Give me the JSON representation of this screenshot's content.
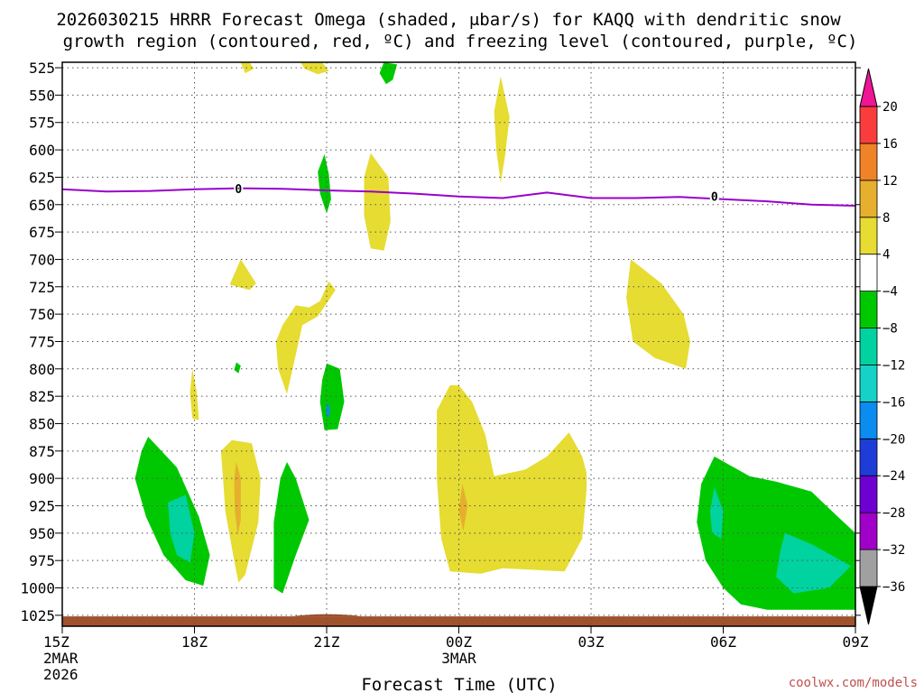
{
  "chart_data": {
    "type": "heatmap",
    "title_line1": "2026030215 HRRR Forecast Omega (shaded, μbar/s) for KAQQ with dendritic snow",
    "title_line2": "growth region (contoured, red, ºC) and freezing level (contoured, purple, ºC)",
    "xlabel": "Forecast Time (UTC)",
    "ylabel": "",
    "credit": "coolwx.com/models",
    "x_range_hours": [
      0,
      18
    ],
    "y_range_mb": [
      1035,
      520
    ],
    "x_ticks": [
      {
        "hour": 0,
        "label": "15Z",
        "sub1": "2MAR",
        "sub2": "2026"
      },
      {
        "hour": 3,
        "label": "18Z",
        "sub1": "",
        "sub2": ""
      },
      {
        "hour": 6,
        "label": "21Z",
        "sub1": "",
        "sub2": ""
      },
      {
        "hour": 9,
        "label": "00Z",
        "sub1": "3MAR",
        "sub2": ""
      },
      {
        "hour": 12,
        "label": "03Z",
        "sub1": "",
        "sub2": ""
      },
      {
        "hour": 15,
        "label": "06Z",
        "sub1": "",
        "sub2": ""
      },
      {
        "hour": 18,
        "label": "09Z",
        "sub1": "",
        "sub2": ""
      }
    ],
    "y_ticks": [
      "525",
      "550",
      "575",
      "600",
      "625",
      "650",
      "675",
      "700",
      "725",
      "750",
      "775",
      "800",
      "825",
      "850",
      "875",
      "900",
      "925",
      "950",
      "975",
      "1000",
      "1025"
    ],
    "colorbar": {
      "colors": [
        "#000000",
        "#a0a0a0",
        "#a000c8",
        "#6e00d2",
        "#1e3cd7",
        "#0a8cf0",
        "#14d2c8",
        "#00d2a0",
        "#00c800",
        "#ffffff",
        "#e6dc32",
        "#e6af2d",
        "#f08228",
        "#fa3c3c",
        "#f01496"
      ],
      "labels": [
        "20",
        "16",
        "12",
        "8",
        "4",
        "−4",
        "−8",
        "−12",
        "−16",
        "−20",
        "−24",
        "−28",
        "−32",
        "−36"
      ]
    },
    "freezing_level": {
      "name": "0 °C freezing level",
      "color": "#9900cc",
      "contour_label": "0",
      "points": [
        [
          0,
          636
        ],
        [
          1,
          638
        ],
        [
          2,
          637.5
        ],
        [
          3,
          636
        ],
        [
          4,
          635
        ],
        [
          5,
          635.5
        ],
        [
          6,
          637
        ],
        [
          7,
          638
        ],
        [
          8,
          640
        ],
        [
          9,
          642.5
        ],
        [
          10,
          644
        ],
        [
          11,
          639
        ],
        [
          12,
          644
        ],
        [
          13,
          644
        ],
        [
          14,
          643
        ],
        [
          15,
          645
        ],
        [
          16,
          647
        ],
        [
          17,
          650
        ],
        [
          18,
          651
        ]
      ]
    },
    "ground": {
      "color": "#a0522d",
      "top_mb": 1026
    },
    "omega_regions": [
      {
        "name": "yellow-top-1",
        "color": "#e6dc32",
        "pts": [
          [
            4.05,
            518
          ],
          [
            4.25,
            520
          ],
          [
            4.35,
            526
          ],
          [
            4.15,
            530
          ]
        ]
      },
      {
        "name": "yellow-top-2",
        "color": "#e6dc32",
        "pts": [
          [
            5.4,
            518
          ],
          [
            5.9,
            520
          ],
          [
            6.05,
            528
          ],
          [
            5.8,
            531
          ],
          [
            5.5,
            526
          ]
        ]
      },
      {
        "name": "green-top",
        "color": "#00c800",
        "pts": [
          [
            7.3,
            518
          ],
          [
            7.6,
            522
          ],
          [
            7.5,
            536
          ],
          [
            7.35,
            540
          ],
          [
            7.2,
            530
          ]
        ]
      },
      {
        "name": "yellow-vertical-upper",
        "color": "#e6dc32",
        "pts": [
          [
            9.95,
            533
          ],
          [
            10.15,
            570
          ],
          [
            10.05,
            605
          ],
          [
            9.95,
            630
          ],
          [
            9.85,
            600
          ],
          [
            9.8,
            565
          ]
        ]
      },
      {
        "name": "green-21z-upper",
        "color": "#00c800",
        "pts": [
          [
            5.95,
            604
          ],
          [
            6.05,
            622
          ],
          [
            6.1,
            645
          ],
          [
            6,
            658
          ],
          [
            5.85,
            640
          ],
          [
            5.8,
            620
          ]
        ]
      },
      {
        "name": "yellow-upper-mid",
        "color": "#e6dc32",
        "pts": [
          [
            7,
            603
          ],
          [
            7.4,
            625
          ],
          [
            7.45,
            665
          ],
          [
            7.3,
            692
          ],
          [
            7,
            690
          ],
          [
            6.85,
            660
          ],
          [
            6.85,
            625
          ]
        ]
      },
      {
        "name": "yellow-small-19z",
        "color": "#e6dc32",
        "pts": [
          [
            4.05,
            700
          ],
          [
            4.4,
            722
          ],
          [
            4.25,
            728
          ],
          [
            3.8,
            723
          ]
        ]
      },
      {
        "name": "yellow-21z-mid",
        "color": "#e6dc32",
        "pts": [
          [
            6.05,
            720
          ],
          [
            5.85,
            738
          ],
          [
            5.6,
            744
          ],
          [
            5.3,
            742
          ],
          [
            5,
            760
          ],
          [
            4.85,
            775
          ],
          [
            4.9,
            800
          ],
          [
            5.1,
            823
          ],
          [
            5.45,
            760
          ],
          [
            5.8,
            752
          ],
          [
            6.2,
            728
          ]
        ]
      },
      {
        "name": "yellow-right-mid",
        "color": "#e6dc32",
        "pts": [
          [
            12.9,
            700
          ],
          [
            13.6,
            722
          ],
          [
            14.1,
            750
          ],
          [
            14.25,
            775
          ],
          [
            14.15,
            800
          ],
          [
            13.45,
            790
          ],
          [
            12.95,
            775
          ],
          [
            12.8,
            735
          ]
        ]
      },
      {
        "name": "green-dot-800",
        "color": "#00c800",
        "pts": [
          [
            3.95,
            794
          ],
          [
            4.05,
            797
          ],
          [
            4,
            804
          ],
          [
            3.9,
            801
          ]
        ]
      },
      {
        "name": "yellow-thin-18z",
        "color": "#e6dc32",
        "pts": [
          [
            2.95,
            800
          ],
          [
            3.05,
            820
          ],
          [
            3.1,
            847
          ],
          [
            2.95,
            845
          ],
          [
            2.9,
            822
          ]
        ]
      },
      {
        "name": "green-21z",
        "color": "#00c800",
        "pts": [
          [
            6,
            795
          ],
          [
            6.3,
            800
          ],
          [
            6.4,
            830
          ],
          [
            6.25,
            855
          ],
          [
            5.95,
            856
          ],
          [
            5.85,
            830
          ],
          [
            5.9,
            810
          ]
        ]
      },
      {
        "name": "blue-21z",
        "color": "#0a8cf0",
        "pts": [
          [
            6.03,
            830
          ],
          [
            6.08,
            839
          ],
          [
            6.03,
            845
          ],
          [
            5.98,
            839
          ]
        ]
      },
      {
        "name": "yellow-big-center",
        "color": "#e6dc32",
        "pts": [
          [
            8.8,
            815
          ],
          [
            8.5,
            838
          ],
          [
            8.5,
            900
          ],
          [
            8.6,
            955
          ],
          [
            8.8,
            985
          ],
          [
            9.5,
            987
          ],
          [
            10,
            982
          ],
          [
            11.4,
            985
          ],
          [
            11.8,
            955
          ],
          [
            11.9,
            910
          ],
          [
            11.9,
            895
          ],
          [
            11.8,
            880
          ],
          [
            11.5,
            858
          ],
          [
            11,
            880
          ],
          [
            10.5,
            892
          ],
          [
            9.8,
            898
          ],
          [
            9.6,
            860
          ],
          [
            9.3,
            830
          ],
          [
            9,
            815
          ]
        ]
      },
      {
        "name": "orange-center",
        "color": "#e6af2d",
        "pts": [
          [
            9.08,
            905
          ],
          [
            9.2,
            925
          ],
          [
            9.1,
            948
          ],
          [
            9,
            930
          ]
        ]
      },
      {
        "name": "yellow-19z",
        "color": "#e6dc32",
        "pts": [
          [
            3.6,
            875
          ],
          [
            3.85,
            865
          ],
          [
            4.3,
            868
          ],
          [
            4.5,
            900
          ],
          [
            4.45,
            940
          ],
          [
            4.15,
            988
          ],
          [
            4,
            995
          ],
          [
            3.9,
            975
          ],
          [
            3.7,
            930
          ],
          [
            3.65,
            900
          ]
        ]
      },
      {
        "name": "orange-19z",
        "color": "#e6af2d",
        "pts": [
          [
            3.95,
            885
          ],
          [
            4.05,
            900
          ],
          [
            4.05,
            938
          ],
          [
            3.98,
            952
          ],
          [
            3.92,
            930
          ],
          [
            3.9,
            900
          ]
        ]
      },
      {
        "name": "green-left",
        "color": "#00c800",
        "pts": [
          [
            1.95,
            862
          ],
          [
            2.6,
            890
          ],
          [
            3.1,
            935
          ],
          [
            3.35,
            970
          ],
          [
            3.2,
            998
          ],
          [
            2.8,
            993
          ],
          [
            2.3,
            970
          ],
          [
            1.9,
            935
          ],
          [
            1.65,
            900
          ],
          [
            1.8,
            875
          ]
        ]
      },
      {
        "name": "teal-left",
        "color": "#00d2a0",
        "pts": [
          [
            2.4,
            922
          ],
          [
            2.8,
            915
          ],
          [
            3,
            950
          ],
          [
            2.9,
            977
          ],
          [
            2.6,
            970
          ],
          [
            2.45,
            950
          ]
        ]
      },
      {
        "name": "green-20z",
        "color": "#00c800",
        "pts": [
          [
            5.1,
            885
          ],
          [
            5.3,
            900
          ],
          [
            5.6,
            938
          ],
          [
            5.3,
            970
          ],
          [
            5,
            1005
          ],
          [
            4.8,
            1000
          ],
          [
            4.8,
            940
          ],
          [
            4.95,
            900
          ]
        ]
      },
      {
        "name": "green-right",
        "color": "#00c800",
        "pts": [
          [
            14.8,
            880
          ],
          [
            15.6,
            898
          ],
          [
            16.2,
            903
          ],
          [
            17,
            912
          ],
          [
            17.6,
            935
          ],
          [
            18,
            950
          ],
          [
            18,
            1020
          ],
          [
            16,
            1020
          ],
          [
            15.4,
            1015
          ],
          [
            15,
            1000
          ],
          [
            14.6,
            975
          ],
          [
            14.4,
            940
          ],
          [
            14.5,
            905
          ]
        ]
      },
      {
        "name": "teal-right-small",
        "color": "#00d2a0",
        "pts": [
          [
            14.8,
            908
          ],
          [
            15,
            930
          ],
          [
            14.95,
            955
          ],
          [
            14.75,
            950
          ],
          [
            14.7,
            930
          ]
        ]
      },
      {
        "name": "teal-right",
        "color": "#00d2a0",
        "pts": [
          [
            16.4,
            950
          ],
          [
            17,
            960
          ],
          [
            17.9,
            980
          ],
          [
            17.4,
            1000
          ],
          [
            16.6,
            1005
          ],
          [
            16.2,
            990
          ],
          [
            16.3,
            965
          ]
        ]
      }
    ]
  }
}
